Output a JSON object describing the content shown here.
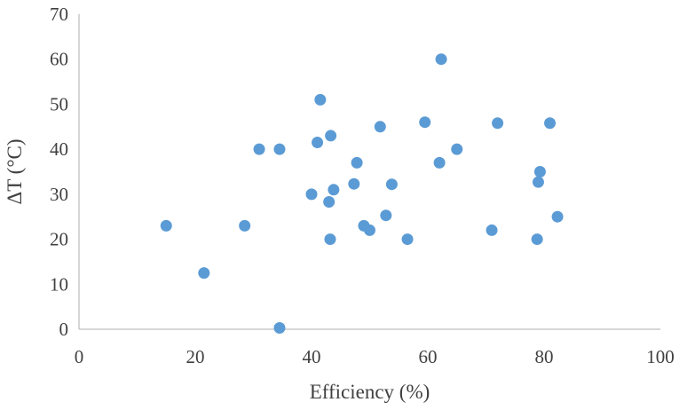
{
  "chart_data": {
    "type": "scatter",
    "xlabel": "Efficiency (%)",
    "ylabel": "ΔT (°C)",
    "xlim": [
      0,
      100
    ],
    "ylim": [
      0,
      70
    ],
    "xticks": [
      0,
      20,
      40,
      60,
      80,
      100
    ],
    "yticks": [
      0,
      10,
      20,
      30,
      40,
      50,
      60,
      70
    ],
    "grid": false,
    "marker_color": "#5b9bd5",
    "points": [
      {
        "x": 15,
        "y": 23
      },
      {
        "x": 21.5,
        "y": 12.5
      },
      {
        "x": 28.5,
        "y": 23
      },
      {
        "x": 31,
        "y": 40
      },
      {
        "x": 34.5,
        "y": 40
      },
      {
        "x": 34.5,
        "y": 0.3
      },
      {
        "x": 40,
        "y": 30
      },
      {
        "x": 41,
        "y": 41.5
      },
      {
        "x": 41.5,
        "y": 51
      },
      {
        "x": 43,
        "y": 28.3
      },
      {
        "x": 43.2,
        "y": 20
      },
      {
        "x": 43.3,
        "y": 43
      },
      {
        "x": 43.8,
        "y": 31
      },
      {
        "x": 47.3,
        "y": 32.3
      },
      {
        "x": 47.8,
        "y": 37
      },
      {
        "x": 49,
        "y": 23
      },
      {
        "x": 50,
        "y": 22
      },
      {
        "x": 51.8,
        "y": 45
      },
      {
        "x": 52.8,
        "y": 25.3
      },
      {
        "x": 53.8,
        "y": 32.2
      },
      {
        "x": 56.5,
        "y": 20
      },
      {
        "x": 59.5,
        "y": 46
      },
      {
        "x": 62,
        "y": 37
      },
      {
        "x": 62.3,
        "y": 60
      },
      {
        "x": 65,
        "y": 40
      },
      {
        "x": 71,
        "y": 22
      },
      {
        "x": 72,
        "y": 45.8
      },
      {
        "x": 78.8,
        "y": 20
      },
      {
        "x": 79,
        "y": 32.7
      },
      {
        "x": 79.3,
        "y": 35
      },
      {
        "x": 81,
        "y": 45.8
      },
      {
        "x": 82.3,
        "y": 25
      }
    ]
  }
}
